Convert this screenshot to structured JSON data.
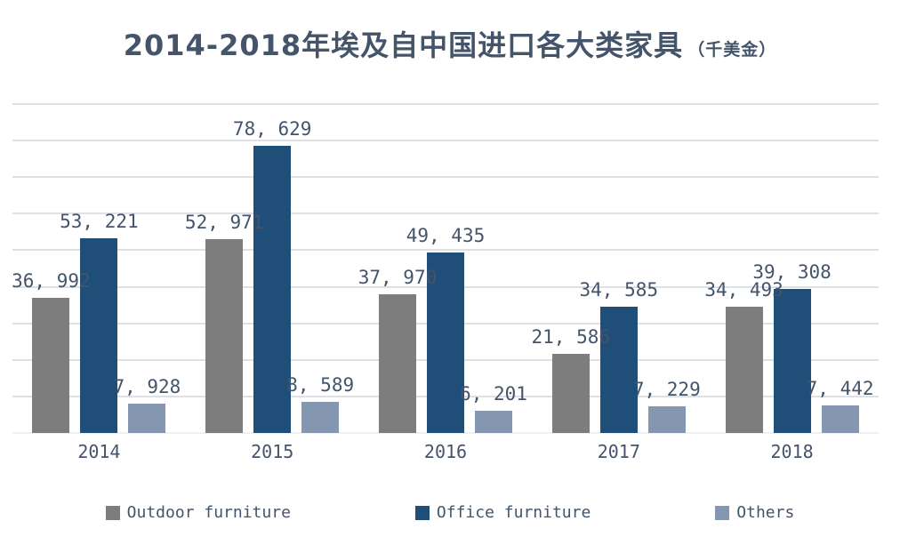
{
  "title": {
    "main": "2014-2018年埃及自中国进口各大类家具",
    "unit": "（千美金）"
  },
  "colors": {
    "text": "#44546A",
    "gridline": "#DDE1E6",
    "baseline": "#EEF1F4",
    "background": "#FFFFFF",
    "outdoor": "#7D7D7D",
    "office": "#1F4E79",
    "others": "#8496B0"
  },
  "chart_data": {
    "type": "bar",
    "title": "2014-2018年埃及自中国进口各大类家具（千美金）",
    "categories": [
      "2014",
      "2015",
      "2016",
      "2017",
      "2018"
    ],
    "series": [
      {
        "name": "Outdoor furniture",
        "color_key": "outdoor",
        "values": [
          36992,
          52971,
          37970,
          21586,
          34493
        ],
        "labels": [
          "36, 992",
          "52, 971",
          "37, 970",
          "21, 586",
          "34, 493"
        ]
      },
      {
        "name": "Office furniture",
        "color_key": "office",
        "values": [
          53221,
          78629,
          49435,
          34585,
          39308
        ],
        "labels": [
          "53, 221",
          "78, 629",
          "49, 435",
          "34, 585",
          "39, 308"
        ]
      },
      {
        "name": "Others",
        "color_key": "others",
        "values": [
          7928,
          8589,
          6201,
          7229,
          7442
        ],
        "labels": [
          "7, 928",
          "8, 589",
          "6, 201",
          "7, 229",
          "7, 442"
        ]
      }
    ],
    "ylim": [
      0,
      90000
    ],
    "gridline_interval": 10000,
    "grid": true,
    "value_labels": true,
    "legend_position": "bottom",
    "xlabel": "",
    "ylabel": ""
  }
}
